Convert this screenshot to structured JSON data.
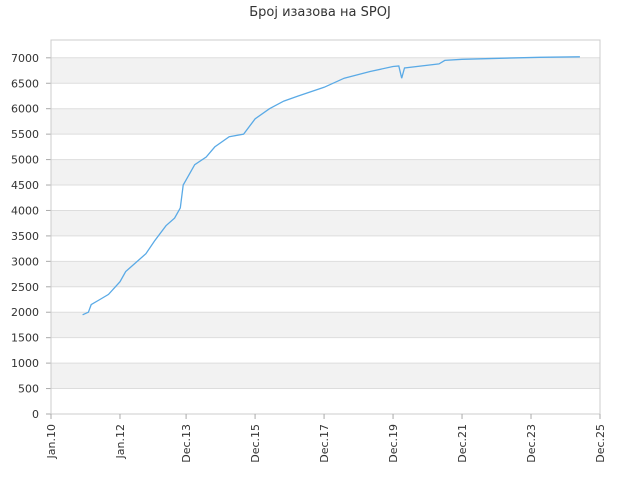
{
  "chart_data": {
    "type": "line",
    "title": "Број изазова на SPOJ",
    "x": [
      "2010-12",
      "2011-02",
      "2011-03",
      "2011-06",
      "2011-09",
      "2012-01",
      "2012-03",
      "2012-06",
      "2012-10",
      "2013-01",
      "2013-05",
      "2013-08",
      "2013-10",
      "2013-11",
      "2013-12",
      "2014-03",
      "2014-07",
      "2014-10",
      "2015-03",
      "2015-08",
      "2015-12",
      "2016-05",
      "2016-10",
      "2017-03",
      "2017-12",
      "2018-07",
      "2019-04",
      "2019-12",
      "2020-02",
      "2020-03",
      "2020-04",
      "2021-04",
      "2021-06",
      "2021-12",
      "2023-01",
      "2024-03",
      "2025-05"
    ],
    "series": [
      {
        "name": "SPOJ",
        "color": "#5aaae6",
        "values": [
          1950,
          2000,
          2150,
          2250,
          2350,
          2600,
          2800,
          2950,
          3150,
          3400,
          3700,
          3850,
          4050,
          4500,
          4600,
          4900,
          5050,
          5250,
          5450,
          5500,
          5800,
          6000,
          6150,
          6250,
          6420,
          6600,
          6730,
          6830,
          6840,
          6600,
          6800,
          6880,
          6950,
          6970,
          6990,
          7010,
          7020
        ]
      }
    ],
    "xlim": [
      "2010-01",
      "2025-12"
    ],
    "xticks": [
      {
        "value": "2010-01",
        "label": "Jan.10"
      },
      {
        "value": "2012-01",
        "label": "Jan.12"
      },
      {
        "value": "2013-12",
        "label": "Dec.13"
      },
      {
        "value": "2015-12",
        "label": "Dec.15"
      },
      {
        "value": "2017-12",
        "label": "Dec.17"
      },
      {
        "value": "2019-12",
        "label": "Dec.19"
      },
      {
        "value": "2021-12",
        "label": "Dec.21"
      },
      {
        "value": "2023-12",
        "label": "Dec.23"
      },
      {
        "value": "2025-12",
        "label": "Dec.25"
      }
    ],
    "ylim": [
      0,
      7350
    ],
    "yticks": [
      0,
      500,
      1000,
      1500,
      2000,
      2500,
      3000,
      3500,
      4000,
      4500,
      5000,
      5500,
      6000,
      6500,
      7000
    ],
    "grid": true
  }
}
